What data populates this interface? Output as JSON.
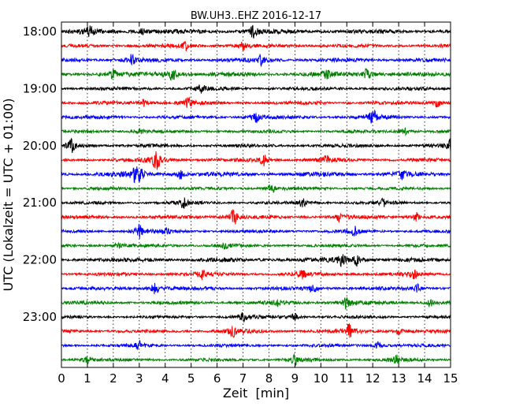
{
  "chart_data": {
    "type": "line",
    "title": "BW.UH3..EHZ 2016-12-17",
    "xlabel": "Zeit  [min]",
    "ylabel": "UTC (Lokalzeit = UTC + 01:00)",
    "xlim": [
      0,
      15
    ],
    "x_ticks": [
      "0",
      "1",
      "2",
      "3",
      "4",
      "5",
      "6",
      "7",
      "8",
      "9",
      "10",
      "11",
      "12",
      "13",
      "14",
      "15"
    ],
    "y_ticks": [
      "18:00",
      "19:00",
      "20:00",
      "21:00",
      "22:00",
      "23:00"
    ],
    "grid": "vertical dotted at each minute",
    "row_minutes": 15,
    "rows_start": "18:00",
    "series": [
      {
        "start": "18:00",
        "color": "#000000",
        "amplitude": 0.55,
        "events": [
          [
            1.1,
            1.0
          ],
          [
            3.1,
            0.9
          ],
          [
            7.4,
            1.2
          ]
        ]
      },
      {
        "start": "18:15",
        "color": "#ff0000",
        "amplitude": 0.45,
        "events": [
          [
            4.8,
            0.8
          ],
          [
            7.0,
            0.7
          ]
        ]
      },
      {
        "start": "18:30",
        "color": "#0000ff",
        "amplitude": 0.5,
        "events": [
          [
            2.7,
            0.9
          ],
          [
            7.7,
            0.8
          ]
        ]
      },
      {
        "start": "18:45",
        "color": "#008000",
        "amplitude": 0.55,
        "events": [
          [
            2.0,
            0.8
          ],
          [
            4.3,
            1.6
          ],
          [
            10.2,
            0.8
          ],
          [
            11.8,
            1.5
          ]
        ]
      },
      {
        "start": "19:00",
        "color": "#000000",
        "amplitude": 0.45,
        "events": [
          [
            5.4,
            0.8
          ]
        ]
      },
      {
        "start": "19:15",
        "color": "#ff0000",
        "amplitude": 0.45,
        "events": [
          [
            3.2,
            0.8
          ],
          [
            4.9,
            0.9
          ],
          [
            14.5,
            0.8
          ]
        ]
      },
      {
        "start": "19:30",
        "color": "#0000ff",
        "amplitude": 0.45,
        "events": [
          [
            7.5,
            0.9
          ],
          [
            12.0,
            1.4
          ]
        ]
      },
      {
        "start": "19:45",
        "color": "#008000",
        "amplitude": 0.4,
        "events": [
          [
            3.0,
            0.7
          ],
          [
            13.2,
            0.8
          ]
        ]
      },
      {
        "start": "20:00",
        "color": "#000000",
        "amplitude": 0.45,
        "events": [
          [
            0.4,
            1.3
          ],
          [
            15.0,
            1.0
          ]
        ]
      },
      {
        "start": "20:15",
        "color": "#ff0000",
        "amplitude": 0.45,
        "events": [
          [
            3.65,
            2.2
          ],
          [
            7.8,
            1.0
          ],
          [
            10.2,
            0.7
          ]
        ]
      },
      {
        "start": "20:30",
        "color": "#0000ff",
        "amplitude": 0.55,
        "events": [
          [
            2.85,
            1.1
          ],
          [
            3.0,
            1.1
          ],
          [
            4.6,
            0.9
          ],
          [
            13.1,
            0.8
          ]
        ]
      },
      {
        "start": "20:45",
        "color": "#008000",
        "amplitude": 0.4,
        "events": [
          [
            8.1,
            0.9
          ]
        ]
      },
      {
        "start": "21:00",
        "color": "#000000",
        "amplitude": 0.4,
        "events": [
          [
            4.7,
            1.0
          ],
          [
            9.3,
            0.8
          ],
          [
            12.4,
            0.8
          ]
        ]
      },
      {
        "start": "21:15",
        "color": "#ff0000",
        "amplitude": 0.45,
        "events": [
          [
            6.65,
            1.8
          ],
          [
            10.7,
            0.8
          ],
          [
            13.7,
            0.8
          ]
        ]
      },
      {
        "start": "21:30",
        "color": "#0000ff",
        "amplitude": 0.4,
        "events": [
          [
            3.0,
            1.3
          ],
          [
            4.0,
            0.7
          ],
          [
            11.3,
            0.8
          ]
        ]
      },
      {
        "start": "21:45",
        "color": "#008000",
        "amplitude": 0.4,
        "events": [
          [
            2.2,
            0.6
          ],
          [
            6.3,
            0.6
          ]
        ]
      },
      {
        "start": "22:00",
        "color": "#000000",
        "amplitude": 0.55,
        "events": [
          [
            10.8,
            1.3
          ],
          [
            11.4,
            1.0
          ]
        ]
      },
      {
        "start": "22:15",
        "color": "#ff0000",
        "amplitude": 0.45,
        "events": [
          [
            5.4,
            1.0
          ],
          [
            9.3,
            0.8
          ],
          [
            13.6,
            0.8
          ]
        ]
      },
      {
        "start": "22:30",
        "color": "#0000ff",
        "amplitude": 0.45,
        "events": [
          [
            3.6,
            1.3
          ],
          [
            9.7,
            0.8
          ],
          [
            13.7,
            0.8
          ]
        ]
      },
      {
        "start": "22:45",
        "color": "#008000",
        "amplitude": 0.45,
        "events": [
          [
            8.3,
            0.7
          ],
          [
            11.0,
            1.3
          ],
          [
            14.2,
            0.8
          ]
        ]
      },
      {
        "start": "23:00",
        "color": "#000000",
        "amplitude": 0.4,
        "events": [
          [
            7.0,
            0.9
          ],
          [
            9.0,
            0.7
          ]
        ]
      },
      {
        "start": "23:15",
        "color": "#ff0000",
        "amplitude": 0.45,
        "events": [
          [
            6.6,
            1.1
          ],
          [
            11.1,
            1.5
          ],
          [
            13.0,
            0.7
          ]
        ]
      },
      {
        "start": "23:30",
        "color": "#0000ff",
        "amplitude": 0.4,
        "events": [
          [
            3.0,
            0.8
          ],
          [
            12.2,
            0.7
          ]
        ]
      },
      {
        "start": "23:45",
        "color": "#008000",
        "amplitude": 0.4,
        "events": [
          [
            1.0,
            0.7
          ],
          [
            9.0,
            0.9
          ],
          [
            12.9,
            0.8
          ]
        ]
      }
    ]
  }
}
